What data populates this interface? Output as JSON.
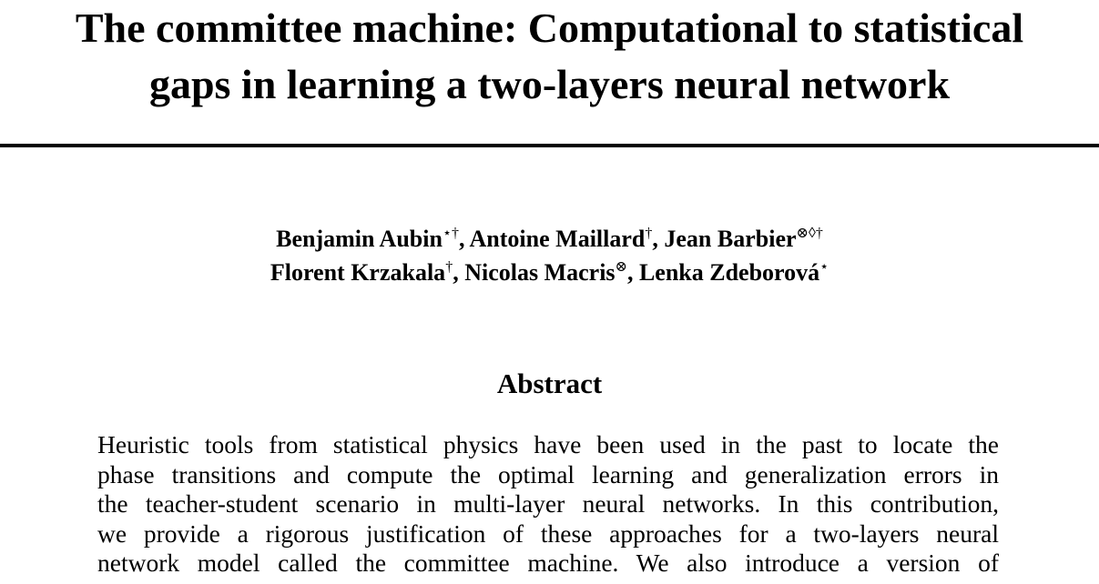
{
  "title": {
    "lines": [
      "The committee machine: Computational to statistical",
      "gaps in learning a two-layers neural network"
    ]
  },
  "authors": {
    "rows": [
      [
        {
          "name": "Benjamin Aubin",
          "marks": "⋆†",
          "sep": ", "
        },
        {
          "name": "Antoine Maillard",
          "marks": "†",
          "sep": ", "
        },
        {
          "name": "Jean Barbier",
          "marks": "⊗◊†",
          "sep": ""
        }
      ],
      [
        {
          "name": "Florent Krzakala",
          "marks": "†",
          "sep": ", "
        },
        {
          "name": "Nicolas Macris",
          "marks": "⊗",
          "sep": ", "
        },
        {
          "name": "Lenka Zdeborová",
          "marks": "⋆",
          "sep": ""
        }
      ]
    ]
  },
  "abstract": {
    "heading": "Abstract",
    "lines": [
      "Heuristic tools from statistical physics have been used in the past to locate the",
      "phase transitions and compute the optimal learning and generalization errors in",
      "the teacher-student scenario in multi-layer neural networks. In this contribution,",
      "we provide a rigorous justification of these approaches for a two-layers neural",
      "network model called the committee machine. We also introduce a version of"
    ]
  }
}
